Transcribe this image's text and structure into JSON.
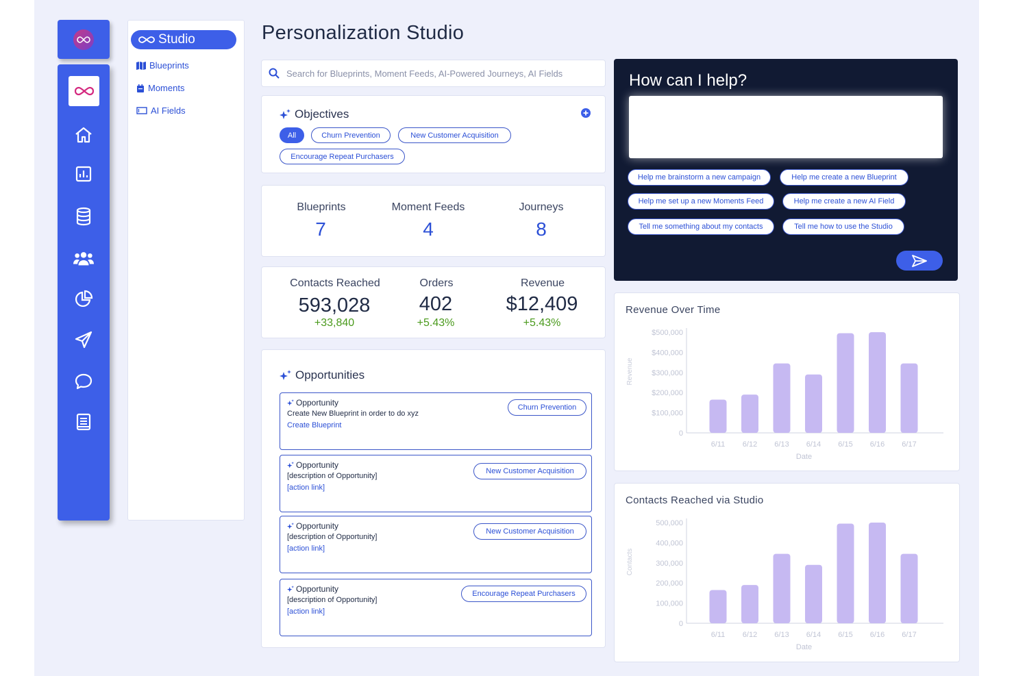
{
  "page_title": "Personalization Studio",
  "colors": {
    "accent": "#3d5fe8",
    "bar": "#c6b9f2",
    "positive": "#4a9a1c",
    "dark_panel": "#111a33"
  },
  "rail": {
    "items": [
      "studio-icon",
      "home-icon",
      "bar-chart-icon",
      "database-icon",
      "people-icon",
      "pie-chart-icon",
      "send-icon",
      "chat-bubble-icon",
      "book-icon"
    ]
  },
  "nav": {
    "studio_label": "Studio",
    "items": [
      {
        "label": "Blueprints",
        "icon": "map-icon"
      },
      {
        "label": "Moments",
        "icon": "calendar-icon"
      },
      {
        "label": "AI Fields",
        "icon": "field-box-icon"
      }
    ]
  },
  "search": {
    "placeholder": "Search for Blueprints, Moment Feeds, AI-Powered Journeys, AI Fields"
  },
  "objectives": {
    "title": "Objectives",
    "chips": [
      "All",
      "Churn Prevention",
      "New Customer Acquisition",
      "Encourage Repeat Purchasers"
    ]
  },
  "counts": {
    "blueprints_label": "Blueprints",
    "blueprints": "7",
    "moments_label": "Moment Feeds",
    "moments": "4",
    "journeys_label": "Journeys",
    "journeys": "8"
  },
  "metrics": {
    "contacts_label": "Contacts Reached",
    "contacts": "593,028",
    "contacts_delta": "+33,840",
    "orders_label": "Orders",
    "orders": "402",
    "orders_delta": "+5.43%",
    "revenue_label": "Revenue",
    "revenue": "$12,409",
    "revenue_delta": "+5.43%"
  },
  "opportunities": {
    "title": "Opportunities",
    "items": [
      {
        "heading": "Opportunity",
        "desc": "Create New Blueprint in order to do xyz",
        "link": "Create Blueprint",
        "tag": "Churn Prevention"
      },
      {
        "heading": "Opportunity",
        "desc": "[description of Opportunity]",
        "link": "[action link]",
        "tag": "New Customer Acquisition"
      },
      {
        "heading": "Opportunity",
        "desc": "[description of Opportunity]",
        "link": "[action link]",
        "tag": "New Customer Acquisition"
      },
      {
        "heading": "Opportunity",
        "desc": "[description of Opportunity]",
        "link": "[action link]",
        "tag": "Encourage Repeat Purchasers"
      }
    ]
  },
  "help": {
    "title": "How can I help?",
    "input_value": "",
    "suggestions": [
      "Help me brainstorm a new campaign",
      "Help me create a new Blueprint",
      "Help me set up a new Moments Feed",
      "Help me create a new AI Field",
      "Tell me something about my contacts",
      "Tell me how to use the Studio"
    ]
  },
  "chart_data": [
    {
      "type": "bar",
      "title": "Revenue Over Time",
      "xlabel": "Date",
      "ylabel": "Revenue",
      "categories": [
        "6/11",
        "6/12",
        "6/13",
        "6/14",
        "6/15",
        "6/16",
        "6/17"
      ],
      "values": [
        165000,
        190000,
        345000,
        290000,
        495000,
        500000,
        345000
      ],
      "yticks": [
        "0",
        "$100,000",
        "$200,000",
        "$300,000",
        "$400,000",
        "$500,000"
      ],
      "ylim": [
        0,
        500000
      ],
      "grid": false
    },
    {
      "type": "bar",
      "title": "Contacts Reached via Studio",
      "xlabel": "Date",
      "ylabel": "Contacts",
      "categories": [
        "6/11",
        "6/12",
        "6/13",
        "6/14",
        "6/15",
        "6/16",
        "6/17"
      ],
      "values": [
        165000,
        190000,
        345000,
        290000,
        495000,
        500000,
        345000
      ],
      "yticks": [
        "0",
        "100,000",
        "200,000",
        "300,000",
        "400,000",
        "500,000"
      ],
      "ylim": [
        0,
        500000
      ],
      "grid": false
    }
  ]
}
